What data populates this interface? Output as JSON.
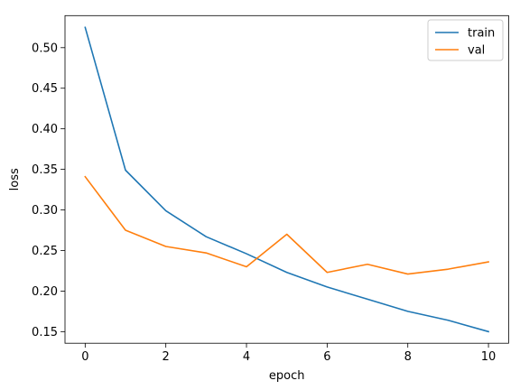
{
  "chart_data": {
    "type": "line",
    "xlabel": "epoch",
    "ylabel": "loss",
    "xlim": [
      -0.5,
      10.5
    ],
    "ylim": [
      0.1357,
      0.5395
    ],
    "xticks": [
      0,
      2,
      4,
      6,
      8,
      10
    ],
    "xtick_labels": [
      "0",
      "2",
      "4",
      "6",
      "8",
      "10"
    ],
    "yticks": [
      0.15,
      0.2,
      0.25,
      0.3,
      0.35,
      0.4,
      0.45,
      0.5
    ],
    "ytick_labels": [
      "0.15",
      "0.20",
      "0.25",
      "0.30",
      "0.35",
      "0.40",
      "0.45",
      "0.50"
    ],
    "grid": false,
    "legend_position": "top-right",
    "x": [
      0,
      1,
      2,
      3,
      4,
      5,
      6,
      7,
      8,
      9,
      10
    ],
    "series": [
      {
        "name": "train",
        "color": "#1f77b4",
        "values": [
          0.525,
          0.349,
          0.299,
          0.267,
          0.246,
          0.223,
          0.205,
          0.19,
          0.175,
          0.164,
          0.15
        ]
      },
      {
        "name": "val",
        "color": "#ff7f0e",
        "values": [
          0.341,
          0.275,
          0.255,
          0.247,
          0.23,
          0.27,
          0.223,
          0.233,
          0.221,
          0.227,
          0.236
        ]
      }
    ]
  }
}
